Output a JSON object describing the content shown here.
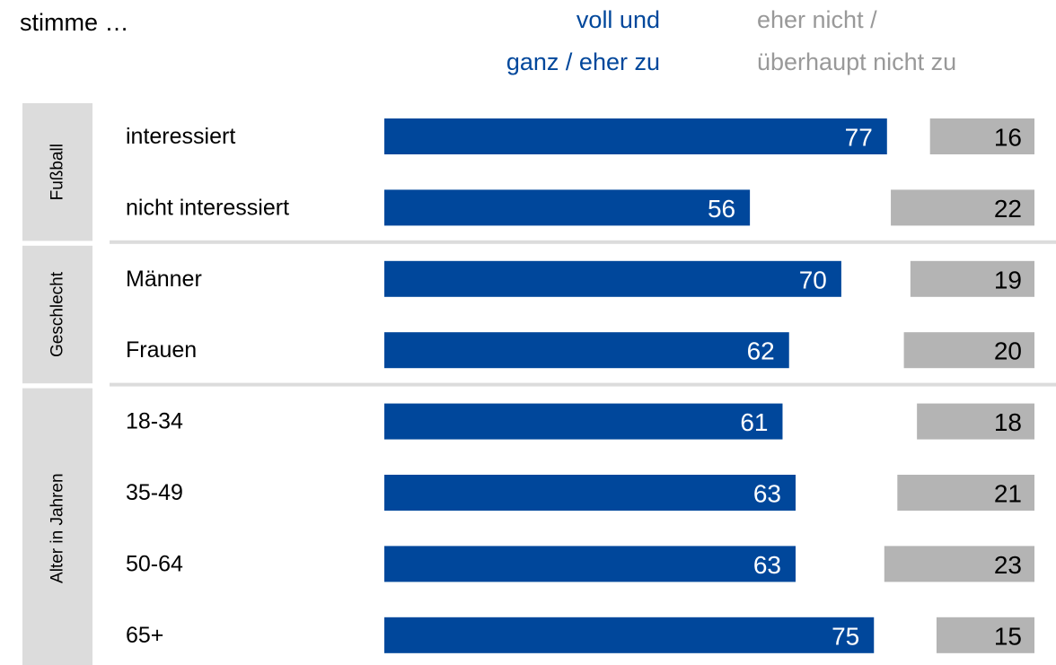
{
  "chart_data": {
    "type": "bar",
    "orientation": "horizontal",
    "subtitle": "stimme …",
    "groups": [
      {
        "name": "Fußball",
        "categories": [
          "interessiert",
          "nicht interessiert"
        ]
      },
      {
        "name": "Geschlecht",
        "categories": [
          "Männer",
          "Frauen"
        ]
      },
      {
        "name": "Alter in Jahren",
        "categories": [
          "18-34",
          "35-49",
          "50-64",
          "65+"
        ]
      }
    ],
    "series": [
      {
        "name": "voll und\nganz / eher zu",
        "color": "#00479b",
        "values": [
          77,
          56,
          70,
          62,
          61,
          63,
          63,
          75
        ]
      },
      {
        "name": "eher nicht /\nüberhaupt nicht zu",
        "color": "#b4b4b4",
        "values": [
          16,
          22,
          19,
          20,
          18,
          21,
          23,
          15
        ]
      }
    ]
  }
}
